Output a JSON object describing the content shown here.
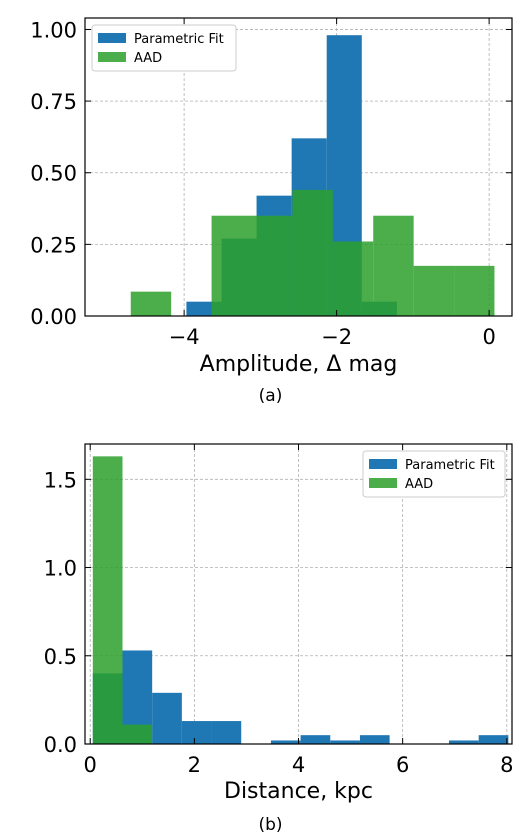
{
  "colors": {
    "parametric": "#1f77b4",
    "aad": "#2ca02c",
    "aad_alpha": 0.85
  },
  "chart_data": [
    {
      "type": "bar",
      "subtitle": "(a)",
      "xlabel": "Amplitude, Δ mag",
      "ylabel": "",
      "xlim": [
        -5.3,
        0.3
      ],
      "ylim": [
        0,
        1.04
      ],
      "xticks": [
        -4,
        -2,
        0
      ],
      "xtick_labels": [
        "−4",
        "−2",
        "0"
      ],
      "yticks": [
        0,
        0.25,
        0.5,
        0.75,
        1.0
      ],
      "ytick_labels": [
        "0.00",
        "0.25",
        "0.50",
        "0.75",
        "1.00"
      ],
      "grid": true,
      "legend_position": "top-left",
      "series": [
        {
          "name": "Parametric Fit",
          "bins": [
            {
              "x0": -3.97,
              "x1": -3.51,
              "y": 0.05
            },
            {
              "x0": -3.51,
              "x1": -3.05,
              "y": 0.27
            },
            {
              "x0": -3.05,
              "x1": -2.59,
              "y": 0.42
            },
            {
              "x0": -2.59,
              "x1": -2.13,
              "y": 0.62
            },
            {
              "x0": -2.13,
              "x1": -1.67,
              "y": 0.98
            },
            {
              "x0": -1.67,
              "x1": -1.21,
              "y": 0.05
            },
            {
              "x0": -1.21,
              "x1": -0.75,
              "y": 0.0
            },
            {
              "x0": -0.75,
              "x1": -0.29,
              "y": 0.0
            }
          ]
        },
        {
          "name": "AAD",
          "bins": [
            {
              "x0": -4.7,
              "x1": -4.17,
              "y": 0.085
            },
            {
              "x0": -4.17,
              "x1": -3.64,
              "y": 0.0
            },
            {
              "x0": -3.64,
              "x1": -3.11,
              "y": 0.35
            },
            {
              "x0": -3.11,
              "x1": -2.58,
              "y": 0.35
            },
            {
              "x0": -2.58,
              "x1": -2.05,
              "y": 0.44
            },
            {
              "x0": -2.05,
              "x1": -1.52,
              "y": 0.26
            },
            {
              "x0": -1.52,
              "x1": -0.99,
              "y": 0.35
            },
            {
              "x0": -0.99,
              "x1": -0.46,
              "y": 0.175
            },
            {
              "x0": -0.46,
              "x1": 0.07,
              "y": 0.175
            }
          ]
        }
      ]
    },
    {
      "type": "bar",
      "subtitle": "(b)",
      "xlabel": "Distance, kpc",
      "ylabel": "",
      "xlim": [
        -0.1,
        8.1
      ],
      "ylim": [
        0,
        1.7
      ],
      "xticks": [
        0,
        2,
        4,
        6,
        8
      ],
      "xtick_labels": [
        "0",
        "2",
        "4",
        "6",
        "8"
      ],
      "yticks": [
        0,
        0.5,
        1.0,
        1.5
      ],
      "ytick_labels": [
        "0.0",
        "0.5",
        "1.0",
        "1.5"
      ],
      "grid": true,
      "legend_position": "top-right",
      "series": [
        {
          "name": "Parametric Fit",
          "bins": [
            {
              "x0": 0.05,
              "x1": 0.62,
              "y": 0.4
            },
            {
              "x0": 0.62,
              "x1": 1.19,
              "y": 0.53
            },
            {
              "x0": 1.19,
              "x1": 1.76,
              "y": 0.29
            },
            {
              "x0": 1.76,
              "x1": 2.33,
              "y": 0.13
            },
            {
              "x0": 2.33,
              "x1": 2.9,
              "y": 0.13
            },
            {
              "x0": 2.9,
              "x1": 3.47,
              "y": 0.0
            },
            {
              "x0": 3.47,
              "x1": 4.04,
              "y": 0.02
            },
            {
              "x0": 4.04,
              "x1": 4.61,
              "y": 0.05
            },
            {
              "x0": 4.61,
              "x1": 5.18,
              "y": 0.02
            },
            {
              "x0": 5.18,
              "x1": 5.75,
              "y": 0.05
            },
            {
              "x0": 5.75,
              "x1": 6.32,
              "y": 0.0
            },
            {
              "x0": 6.32,
              "x1": 6.89,
              "y": 0.0
            },
            {
              "x0": 6.89,
              "x1": 7.46,
              "y": 0.02
            },
            {
              "x0": 7.46,
              "x1": 8.03,
              "y": 0.05
            }
          ]
        },
        {
          "name": "AAD",
          "bins": [
            {
              "x0": 0.05,
              "x1": 0.62,
              "y": 1.63
            },
            {
              "x0": 0.62,
              "x1": 1.19,
              "y": 0.11
            }
          ]
        }
      ]
    }
  ]
}
